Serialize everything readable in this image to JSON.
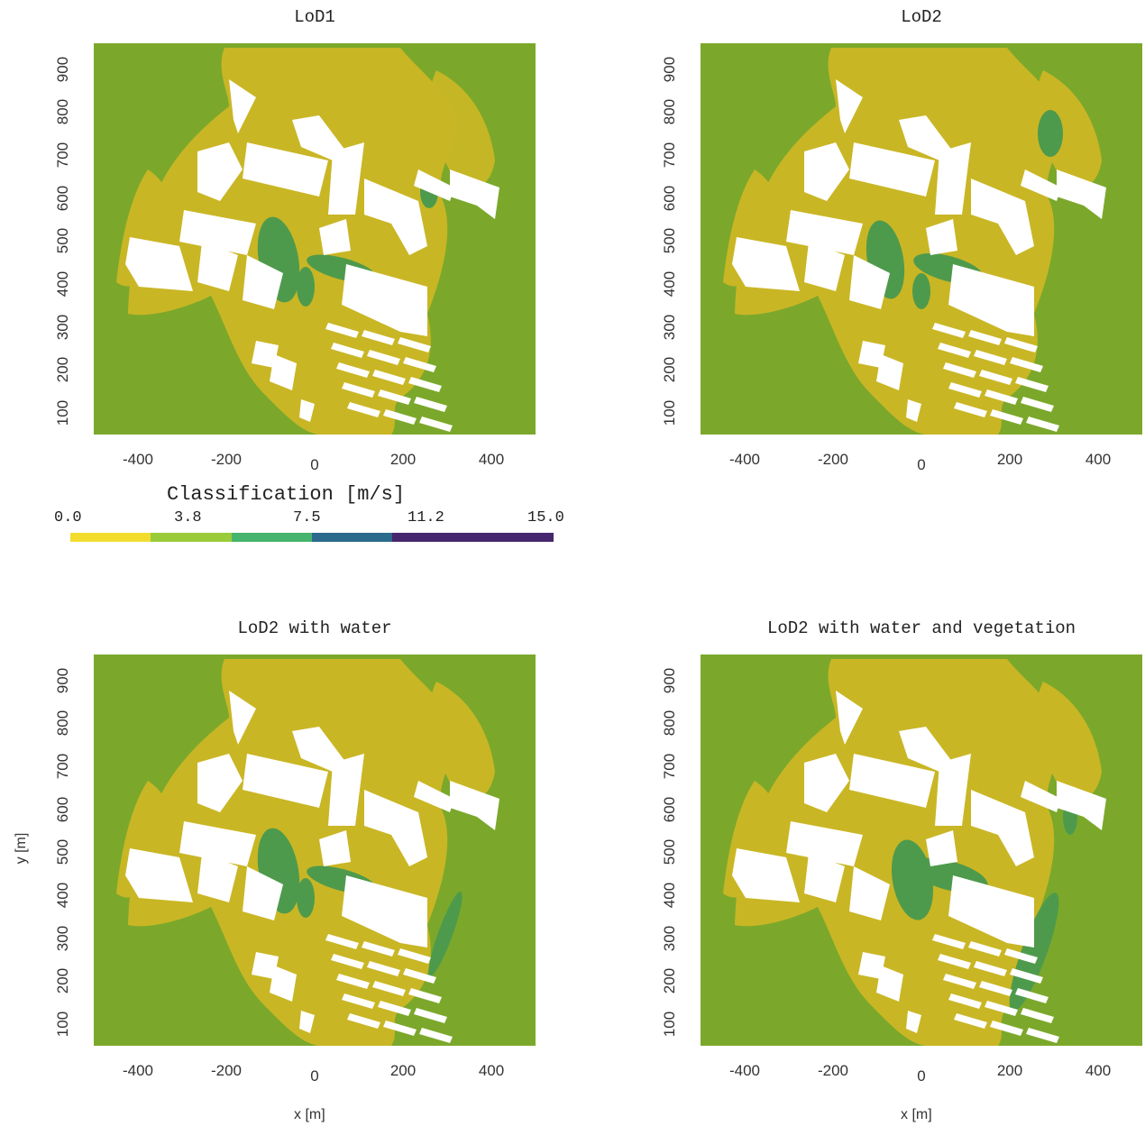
{
  "panels": [
    {
      "id": "lod1",
      "title": "LoD1"
    },
    {
      "id": "lod2",
      "title": "LoD2"
    },
    {
      "id": "lod2_water",
      "title": "LoD2 with water"
    },
    {
      "id": "lod2_water_veg",
      "title": "LoD2 with water and vegetation"
    }
  ],
  "axes": {
    "xlabel": "x [m]",
    "ylabel": "y [m]",
    "xticks": [
      "-400",
      "-200",
      "0",
      "200",
      "400"
    ],
    "yticks": [
      "100",
      "200",
      "300",
      "400",
      "500",
      "600",
      "700",
      "800",
      "900"
    ]
  },
  "colorbar": {
    "title": "Classification [m/s]",
    "ticks": [
      "0.0",
      "3.8",
      "7.5",
      "11.2",
      "15.0"
    ],
    "segments": [
      {
        "from": 0.0,
        "to": 2.5,
        "color": "#f2dd2f"
      },
      {
        "from": 2.5,
        "to": 5.0,
        "color": "#9acc3a"
      },
      {
        "from": 5.0,
        "to": 7.5,
        "color": "#46b46c"
      },
      {
        "from": 7.5,
        "to": 10.0,
        "color": "#2b6a8c"
      },
      {
        "from": 10.0,
        "to": 15.0,
        "color": "#46266e"
      }
    ]
  },
  "colors": {
    "background_field": "#7ba82b",
    "slow_zone": "#c9b625",
    "fast_zone": "#4e9a4c",
    "buildings": "#ffffff"
  },
  "chart_data": {
    "type": "heatmap",
    "xlim": [
      -500,
      500
    ],
    "ylim": [
      50,
      960
    ],
    "xlabel": "x [m]",
    "ylabel": "y [m]",
    "colorbar_range": [
      0.0,
      15.0
    ]
  }
}
